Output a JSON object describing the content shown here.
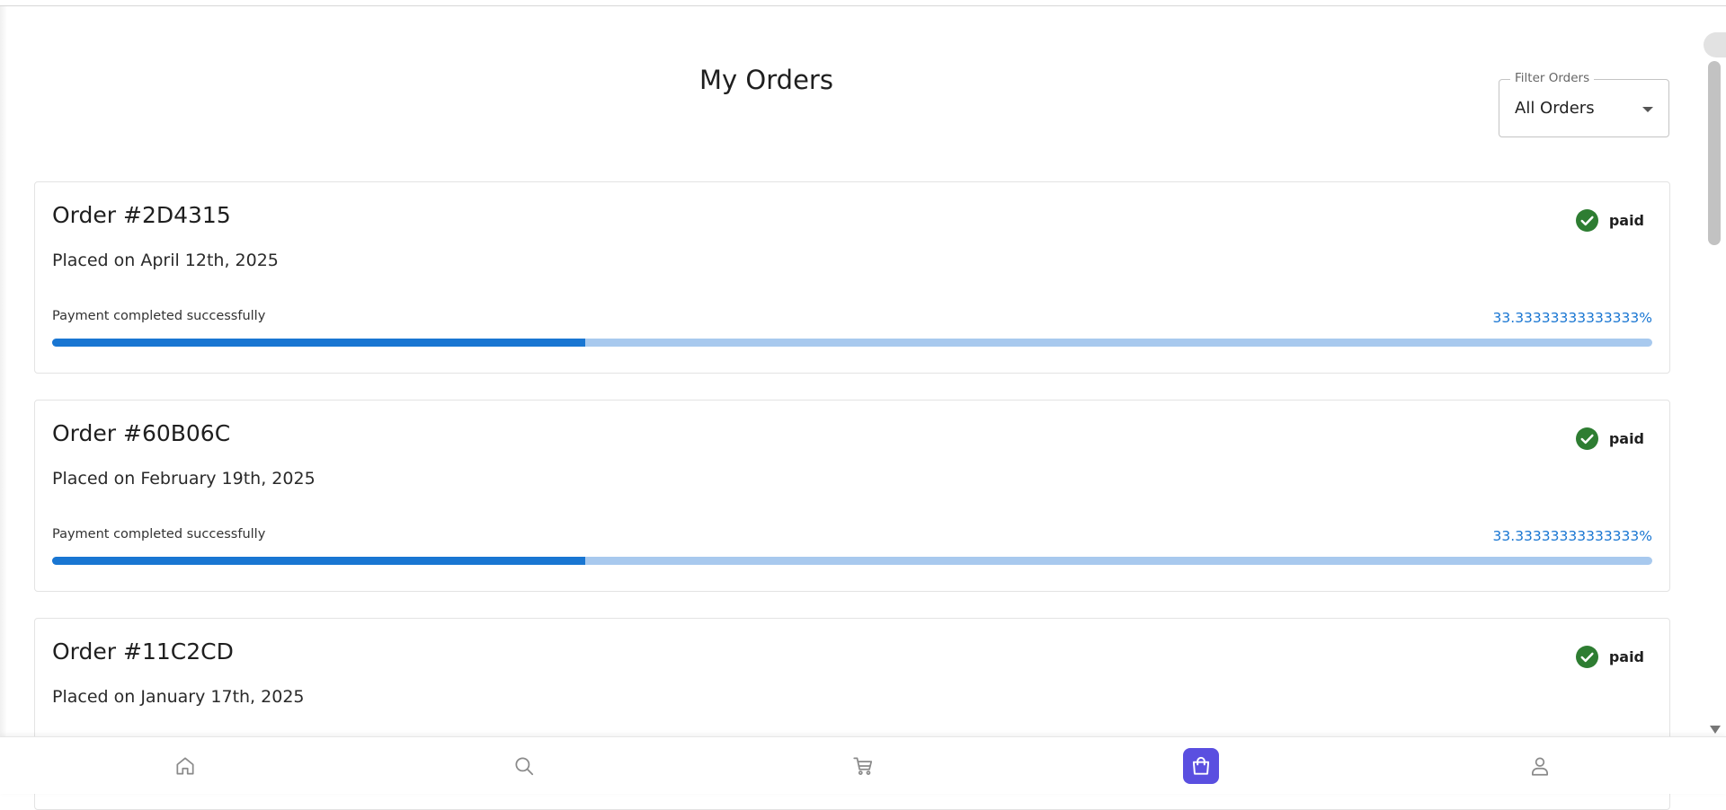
{
  "page": {
    "title": "My Orders"
  },
  "filter": {
    "label": "Filter Orders",
    "value": "All Orders"
  },
  "orders": [
    {
      "title": "Order #2D4315",
      "date": "Placed on April 12th, 2025",
      "status": "paid",
      "progress_caption": "Payment completed successfully",
      "progress_pct": "33.33333333333333%",
      "progress_value": 33.33333333333333
    },
    {
      "title": "Order #60B06C",
      "date": "Placed on February 19th, 2025",
      "status": "paid",
      "progress_caption": "Payment completed successfully",
      "progress_pct": "33.33333333333333%",
      "progress_value": 33.33333333333333
    },
    {
      "title": "Order #11C2CD",
      "date": "Placed on January 17th, 2025",
      "status": "paid"
    }
  ],
  "bottom_nav": {
    "items": [
      {
        "icon": "home-icon"
      },
      {
        "icon": "search-icon"
      },
      {
        "icon": "cart-icon"
      },
      {
        "icon": "shopping-bag-icon",
        "active": true
      },
      {
        "icon": "user-icon"
      }
    ]
  },
  "colors": {
    "accent": "#5a4fe0",
    "progress": "#1976d2",
    "progress_track": "#a8c9ee",
    "paid": "#2e7d32"
  }
}
